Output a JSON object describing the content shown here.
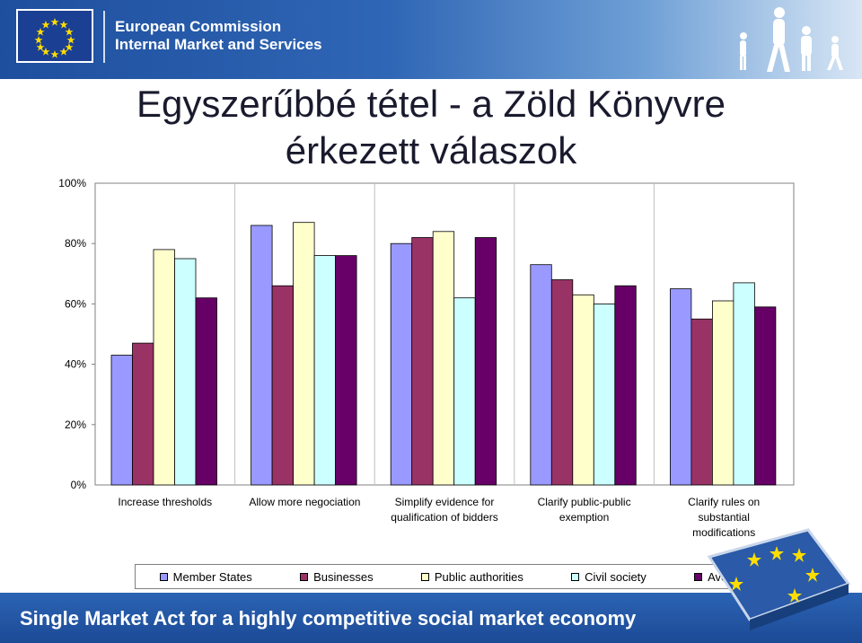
{
  "header": {
    "org_line1": "European Commission",
    "org_line2": "Internal Market and Services"
  },
  "title": {
    "line1": "Egyszerűbbé tétel - a Zöld Könyvre",
    "line2": "érkezett válaszok"
  },
  "footer": {
    "slogan": "Single Market Act for a  highly competitive social market economy"
  },
  "colors": {
    "header_blue": "#2f66b5",
    "series": [
      "#9999ff",
      "#993366",
      "#ffffcc",
      "#ccffff",
      "#660066"
    ]
  },
  "icons": [
    "eu-flag-icon",
    "walking-people-icon",
    "eu-puzzle-icon"
  ],
  "chart_data": {
    "type": "bar",
    "categories": [
      [
        "Increase thresholds"
      ],
      [
        "Allow more negociation"
      ],
      [
        "Simplify evidence for",
        "qualification of bidders"
      ],
      [
        "Clarify  public-public",
        "exemption"
      ],
      [
        "Clarify rules on",
        "substantial",
        "modifications"
      ]
    ],
    "series": [
      {
        "name": "Member States",
        "values": [
          43,
          86,
          80,
          73,
          65
        ]
      },
      {
        "name": "Businesses",
        "values": [
          47,
          66,
          82,
          68,
          55
        ]
      },
      {
        "name": "Public authorities",
        "values": [
          78,
          87,
          84,
          63,
          61
        ]
      },
      {
        "name": "Civil society",
        "values": [
          75,
          76,
          62,
          60,
          67
        ]
      },
      {
        "name": "Average",
        "values": [
          62,
          76,
          82,
          66,
          59
        ]
      }
    ],
    "yticks": [
      "0%",
      "20%",
      "40%",
      "60%",
      "80%",
      "100%"
    ],
    "ylim": [
      0,
      100
    ],
    "grid": false,
    "legend_position": "bottom"
  }
}
